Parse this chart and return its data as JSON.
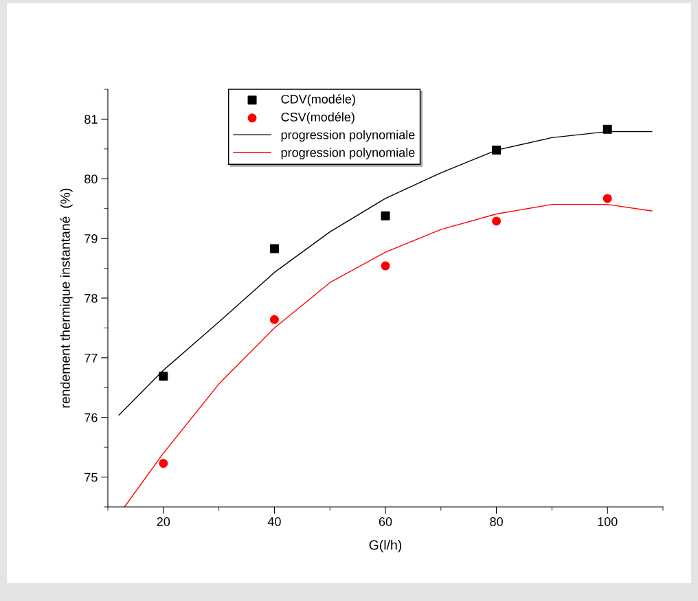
{
  "chart_data": {
    "type": "scatter",
    "xlabel": "G(l/h)",
    "ylabel": "rendement thermique instantané  (%)",
    "xlim": [
      10,
      110
    ],
    "xticks": [
      20,
      40,
      60,
      80,
      100
    ],
    "ylim": [
      74.5,
      81.5
    ],
    "yticks": [
      75,
      76,
      77,
      78,
      79,
      80,
      81
    ],
    "grid": false,
    "legend": "top",
    "series": [
      {
        "name": "CDV(modéle)",
        "marker": "square",
        "color": "#000000",
        "x": [
          20,
          40,
          60,
          80,
          100
        ],
        "values": [
          76.69,
          78.83,
          79.38,
          80.48,
          80.83
        ]
      },
      {
        "name": "CSV(modéle)",
        "marker": "circle",
        "color": "#ff0000",
        "x": [
          20,
          40,
          60,
          80,
          100
        ],
        "values": [
          75.23,
          77.64,
          78.54,
          79.29,
          79.67
        ]
      },
      {
        "name": "progression polynomiale",
        "type": "line",
        "marker": "none",
        "line_style": "solid",
        "color": "#000000",
        "x": [
          12,
          20,
          30,
          40,
          50,
          60,
          70,
          80,
          90,
          100,
          108
        ],
        "values": [
          76.04,
          76.79,
          77.6,
          78.43,
          79.11,
          79.67,
          80.1,
          80.48,
          80.69,
          80.79,
          80.79
        ]
      },
      {
        "name": "progression polynomiale",
        "type": "line",
        "marker": "none",
        "line_style": "solid",
        "color": "#ff0000",
        "x": [
          13,
          20,
          30,
          40,
          50,
          60,
          70,
          80,
          90,
          100,
          108
        ],
        "values": [
          74.5,
          75.4,
          76.56,
          77.5,
          78.26,
          78.77,
          79.15,
          79.41,
          79.57,
          79.57,
          79.46
        ]
      }
    ]
  }
}
